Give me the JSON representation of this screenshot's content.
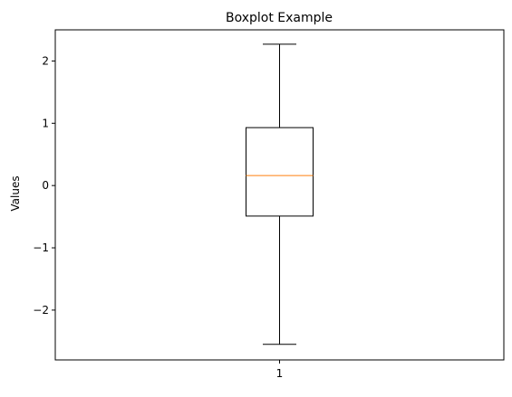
{
  "chart_data": {
    "type": "boxplot",
    "title": "Boxplot Example",
    "xlabel": "",
    "ylabel": "Values",
    "ylim": [
      -2.8,
      2.5
    ],
    "y_ticks": [
      -2,
      -1,
      0,
      1,
      2
    ],
    "y_tick_labels": [
      "−2",
      "−1",
      "0",
      "1",
      "2"
    ],
    "categories": [
      "1"
    ],
    "boxes": [
      {
        "category": "1",
        "whisker_low": -2.55,
        "q1": -0.49,
        "median": 0.16,
        "q3": 0.93,
        "whisker_high": 2.27
      }
    ],
    "grid": false,
    "colors": {
      "box": "#000000",
      "median": "#ff7f0e",
      "whisker": "#000000"
    }
  }
}
